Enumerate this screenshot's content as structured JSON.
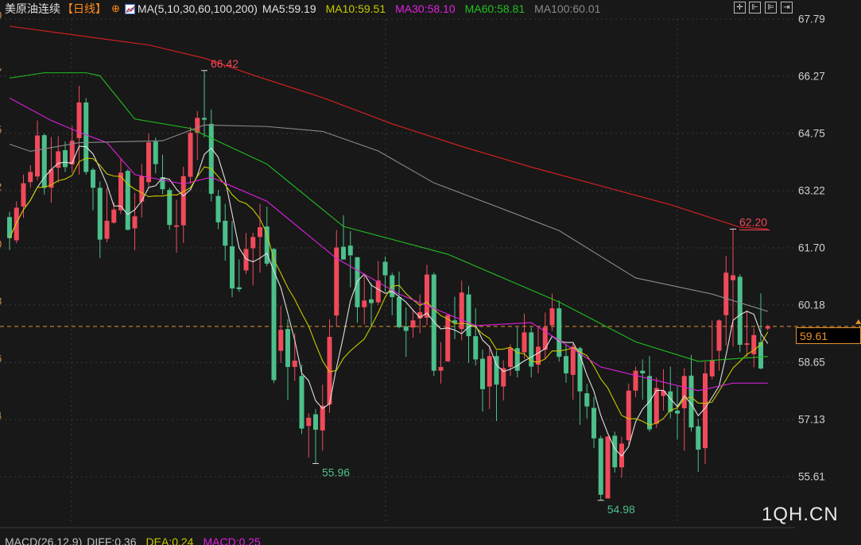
{
  "header": {
    "instrument": "美原油连续",
    "period": "【日线】",
    "ma_label": "MA(5,10,30,60,100,200)",
    "ma_values": [
      {
        "text": "MA5:59.19",
        "color": "#e0e0e0"
      },
      {
        "text": "MA10:59.51",
        "color": "#c8c800"
      },
      {
        "text": "MA30:58.10",
        "color": "#e020e0"
      },
      {
        "text": "MA60:58.81",
        "color": "#20c020"
      },
      {
        "text": "MA100:60.01",
        "color": "#8a8a8a"
      }
    ],
    "toolbar_icons": [
      "crosshair-icon",
      "zoom-in-icon",
      "zoom-out-icon",
      "move-right-icon"
    ]
  },
  "macd": {
    "label": "MACD(26,12,9)",
    "diff": "DIFF:0.36",
    "dea": "DEA:0.24",
    "macd": "MACD:0.25"
  },
  "watermark": "1QH.CN",
  "current_price": "59.61",
  "left_axis_fragments": [
    "0",
    "7",
    "5",
    "2",
    "0",
    "8",
    "6",
    "4"
  ],
  "colors": {
    "up": "#f04a5a",
    "down": "#4cbf8a",
    "current_line": "#e8922a",
    "ma200": "#e02020"
  },
  "chart_data": {
    "type": "candlestick",
    "ylim": [
      55.61,
      67.79
    ],
    "y_ticks": [
      "67.79",
      "66.27",
      "64.75",
      "63.22",
      "61.70",
      "60.18",
      "58.65",
      "57.13",
      "55.61"
    ],
    "grid": true,
    "candles_ohlc": [
      [
        62.52,
        62.66,
        61.64,
        61.96
      ],
      [
        61.9,
        62.94,
        61.82,
        62.77
      ],
      [
        62.8,
        63.65,
        62.5,
        63.42
      ],
      [
        63.45,
        63.9,
        63.3,
        63.72
      ],
      [
        63.6,
        65.09,
        63.5,
        64.69
      ],
      [
        64.7,
        64.74,
        63.12,
        63.3
      ],
      [
        63.3,
        64.65,
        62.9,
        63.79
      ],
      [
        63.83,
        64.67,
        63.44,
        64.27
      ],
      [
        64.3,
        64.53,
        63.72,
        63.85
      ],
      [
        63.92,
        64.95,
        63.72,
        64.55
      ],
      [
        64.62,
        66.01,
        63.65,
        65.57
      ],
      [
        65.57,
        65.69,
        63.65,
        63.72
      ],
      [
        63.78,
        63.83,
        62.7,
        63.3
      ],
      [
        63.3,
        63.47,
        61.43,
        61.92
      ],
      [
        61.94,
        63.3,
        61.85,
        62.42
      ],
      [
        62.37,
        62.91,
        62.34,
        62.72
      ],
      [
        62.7,
        64.06,
        62.6,
        63.7
      ],
      [
        63.75,
        63.79,
        62.17,
        62.18
      ],
      [
        62.22,
        63.16,
        61.64,
        62.54
      ],
      [
        62.93,
        63.94,
        62.51,
        63.61
      ],
      [
        63.45,
        64.74,
        63.33,
        64.51
      ],
      [
        64.53,
        64.64,
        63.68,
        63.93
      ],
      [
        63.58,
        64.18,
        63.12,
        63.26
      ],
      [
        63.24,
        63.3,
        62.18,
        62.31
      ],
      [
        62.26,
        62.98,
        61.57,
        62.3
      ],
      [
        62.3,
        63.86,
        61.83,
        63.61
      ],
      [
        63.59,
        64.92,
        63.4,
        64.76
      ],
      [
        64.76,
        65.34,
        64.04,
        65.16
      ],
      [
        65.16,
        66.42,
        64.64,
        65.11
      ],
      [
        65.0,
        65.38,
        62.94,
        63.14
      ],
      [
        63.08,
        63.24,
        62.2,
        62.38
      ],
      [
        62.42,
        62.87,
        61.36,
        61.76
      ],
      [
        61.74,
        62.42,
        60.39,
        60.62
      ],
      [
        60.65,
        61.39,
        60.53,
        60.6
      ],
      [
        61.1,
        62.1,
        61.0,
        61.67
      ],
      [
        61.69,
        62.1,
        60.7,
        61.99
      ],
      [
        61.99,
        62.87,
        61.04,
        62.25
      ],
      [
        62.27,
        62.8,
        61.21,
        61.28
      ],
      [
        61.67,
        61.7,
        58.1,
        58.18
      ],
      [
        58.96,
        60.16,
        58.64,
        59.52
      ],
      [
        59.54,
        59.8,
        57.65,
        58.53
      ],
      [
        58.53,
        59.42,
        58.16,
        58.7
      ],
      [
        58.29,
        58.6,
        56.75,
        56.89
      ],
      [
        56.96,
        57.3,
        56.12,
        57.18
      ],
      [
        57.27,
        57.41,
        55.96,
        56.86
      ],
      [
        56.84,
        58.06,
        56.31,
        57.5
      ],
      [
        57.53,
        59.8,
        57.31,
        59.33
      ],
      [
        59.9,
        62.18,
        59.61,
        61.71
      ],
      [
        61.73,
        62.57,
        61.39,
        61.39
      ],
      [
        61.76,
        62.15,
        60.65,
        61.5
      ],
      [
        61.45,
        61.46,
        59.71,
        60.12
      ],
      [
        60.12,
        61.0,
        59.66,
        60.3
      ],
      [
        60.33,
        60.76,
        59.59,
        60.23
      ],
      [
        60.25,
        61.35,
        60.18,
        60.83
      ],
      [
        61.33,
        61.47,
        60.54,
        60.97
      ],
      [
        60.97,
        61.04,
        59.91,
        60.39
      ],
      [
        60.39,
        61.07,
        59.56,
        59.59
      ],
      [
        59.61,
        60.11,
        58.8,
        59.49
      ],
      [
        59.58,
        60.06,
        59.31,
        59.77
      ],
      [
        59.82,
        60.46,
        59.43,
        59.99
      ],
      [
        59.84,
        61.25,
        59.64,
        60.99
      ],
      [
        60.99,
        61.04,
        58.29,
        58.43
      ],
      [
        58.43,
        59.19,
        58.09,
        58.53
      ],
      [
        58.68,
        59.93,
        58.67,
        59.91
      ],
      [
        59.77,
        60.4,
        59.27,
        59.7
      ],
      [
        59.54,
        60.83,
        59.24,
        60.51
      ],
      [
        60.46,
        60.69,
        58.64,
        59.35
      ],
      [
        59.35,
        60.09,
        58.57,
        58.73
      ],
      [
        58.75,
        58.99,
        57.34,
        57.94
      ],
      [
        58.01,
        59.1,
        57.41,
        58.82
      ],
      [
        58.82,
        58.96,
        57.09,
        58.06
      ],
      [
        58.01,
        58.71,
        57.64,
        58.5
      ],
      [
        58.53,
        59.13,
        58.29,
        59.03
      ],
      [
        59.03,
        59.59,
        58.25,
        58.43
      ],
      [
        58.92,
        59.95,
        58.75,
        59.45
      ],
      [
        59.45,
        59.59,
        58.25,
        58.54
      ],
      [
        58.59,
        59.59,
        58.36,
        59.07
      ],
      [
        58.99,
        59.98,
        58.75,
        59.59
      ],
      [
        59.64,
        60.48,
        59.49,
        60.09
      ],
      [
        60.09,
        60.3,
        58.68,
        58.8
      ],
      [
        58.82,
        59.14,
        58.11,
        58.36
      ],
      [
        58.32,
        59.14,
        57.66,
        59.07
      ],
      [
        59.03,
        59.07,
        56.99,
        57.88
      ],
      [
        57.83,
        58.08,
        57.16,
        57.48
      ],
      [
        57.44,
        57.73,
        56.37,
        56.63
      ],
      [
        56.63,
        56.7,
        54.98,
        55.13
      ],
      [
        55.03,
        56.68,
        55.03,
        56.68
      ],
      [
        56.7,
        56.81,
        55.72,
        55.86
      ],
      [
        55.86,
        56.67,
        55.58,
        56.49
      ],
      [
        56.58,
        58.09,
        56.46,
        57.9
      ],
      [
        57.9,
        58.54,
        57.73,
        58.43
      ],
      [
        58.43,
        58.73,
        57.66,
        58.36
      ],
      [
        58.29,
        58.82,
        56.81,
        56.87
      ],
      [
        57.02,
        58.25,
        56.91,
        57.97
      ],
      [
        57.76,
        58.47,
        57.37,
        57.9
      ],
      [
        57.88,
        58.54,
        57.16,
        57.34
      ],
      [
        57.37,
        58.01,
        56.6,
        57.29
      ],
      [
        57.43,
        58.5,
        56.3,
        58.29
      ],
      [
        58.3,
        58.85,
        56.81,
        56.92
      ],
      [
        56.95,
        57.15,
        55.74,
        56.33
      ],
      [
        56.37,
        58.68,
        55.95,
        58.36
      ],
      [
        58.28,
        59.77,
        58.2,
        58.71
      ],
      [
        58.96,
        59.8,
        58.43,
        59.77
      ],
      [
        59.91,
        61.48,
        59.1,
        61.04
      ],
      [
        60.84,
        62.2,
        59.07,
        60.97
      ],
      [
        60.93,
        61.0,
        58.92,
        59.12
      ],
      [
        59.12,
        60.04,
        58.78,
        59.16
      ],
      [
        58.87,
        59.56,
        58.52,
        59.38
      ],
      [
        59.19,
        60.49,
        58.47,
        58.49
      ],
      [
        59.55,
        59.66,
        59.5,
        59.61
      ]
    ],
    "moving_averages": [
      {
        "name": "MA5",
        "period": 5,
        "color": "#e0e0e0"
      },
      {
        "name": "MA10",
        "period": 10,
        "color": "#c8c800"
      },
      {
        "name": "MA30",
        "color": "#e020e0",
        "samples": [
          [
            0,
            65.69
          ],
          [
            6,
            65.09
          ],
          [
            10,
            64.78
          ],
          [
            14,
            64.5
          ],
          [
            18,
            63.65
          ],
          [
            25,
            63.4
          ],
          [
            29,
            63.58
          ],
          [
            37,
            62.94
          ],
          [
            47,
            61.42
          ],
          [
            56,
            60.47
          ],
          [
            67,
            59.63
          ],
          [
            75,
            59.71
          ],
          [
            85,
            58.53
          ],
          [
            99,
            57.9
          ],
          [
            104,
            58.1
          ],
          [
            109,
            58.1
          ]
        ]
      },
      {
        "name": "MA60",
        "color": "#20c020",
        "samples": [
          [
            0,
            66.22
          ],
          [
            5,
            66.36
          ],
          [
            11,
            66.36
          ],
          [
            13,
            66.28
          ],
          [
            18,
            65.13
          ],
          [
            26,
            64.88
          ],
          [
            37,
            63.93
          ],
          [
            48,
            62.27
          ],
          [
            63,
            61.53
          ],
          [
            79,
            60.26
          ],
          [
            90,
            59.2
          ],
          [
            99,
            58.68
          ],
          [
            109,
            58.81
          ]
        ]
      },
      {
        "name": "MA100",
        "color": "#8a8a8a",
        "samples": [
          [
            0,
            64.46
          ],
          [
            3,
            64.27
          ],
          [
            10,
            64.5
          ],
          [
            22,
            64.55
          ],
          [
            28,
            64.97
          ],
          [
            37,
            64.93
          ],
          [
            45,
            64.8
          ],
          [
            53,
            64.28
          ],
          [
            61,
            63.43
          ],
          [
            70,
            62.8
          ],
          [
            79,
            62.16
          ],
          [
            90,
            60.9
          ],
          [
            101,
            60.47
          ],
          [
            109,
            60.01
          ]
        ]
      },
      {
        "name": "MA200",
        "color": "#e02020",
        "samples": [
          [
            0,
            67.6
          ],
          [
            10,
            67.35
          ],
          [
            20,
            67.1
          ],
          [
            28,
            66.75
          ],
          [
            35,
            66.3
          ],
          [
            45,
            65.7
          ],
          [
            55,
            65.0
          ],
          [
            65,
            64.4
          ],
          [
            75,
            63.85
          ],
          [
            85,
            63.35
          ],
          [
            95,
            62.85
          ],
          [
            100,
            62.55
          ],
          [
            105,
            62.25
          ],
          [
            109,
            62.2
          ]
        ]
      }
    ],
    "annotations": [
      {
        "text": "66.42",
        "index": 28,
        "price": 66.42,
        "kind": "high",
        "color": "#f04a5a"
      },
      {
        "text": "55.96",
        "index": 44,
        "price": 55.96,
        "kind": "low",
        "color": "#4cbf8a"
      },
      {
        "text": "54.98",
        "index": 85,
        "price": 54.98,
        "kind": "low",
        "color": "#4cbf8a"
      },
      {
        "text": "62.20",
        "index": 104,
        "price": 62.2,
        "kind": "high",
        "color": "#f04a5a"
      }
    ],
    "current_price": 59.61
  }
}
